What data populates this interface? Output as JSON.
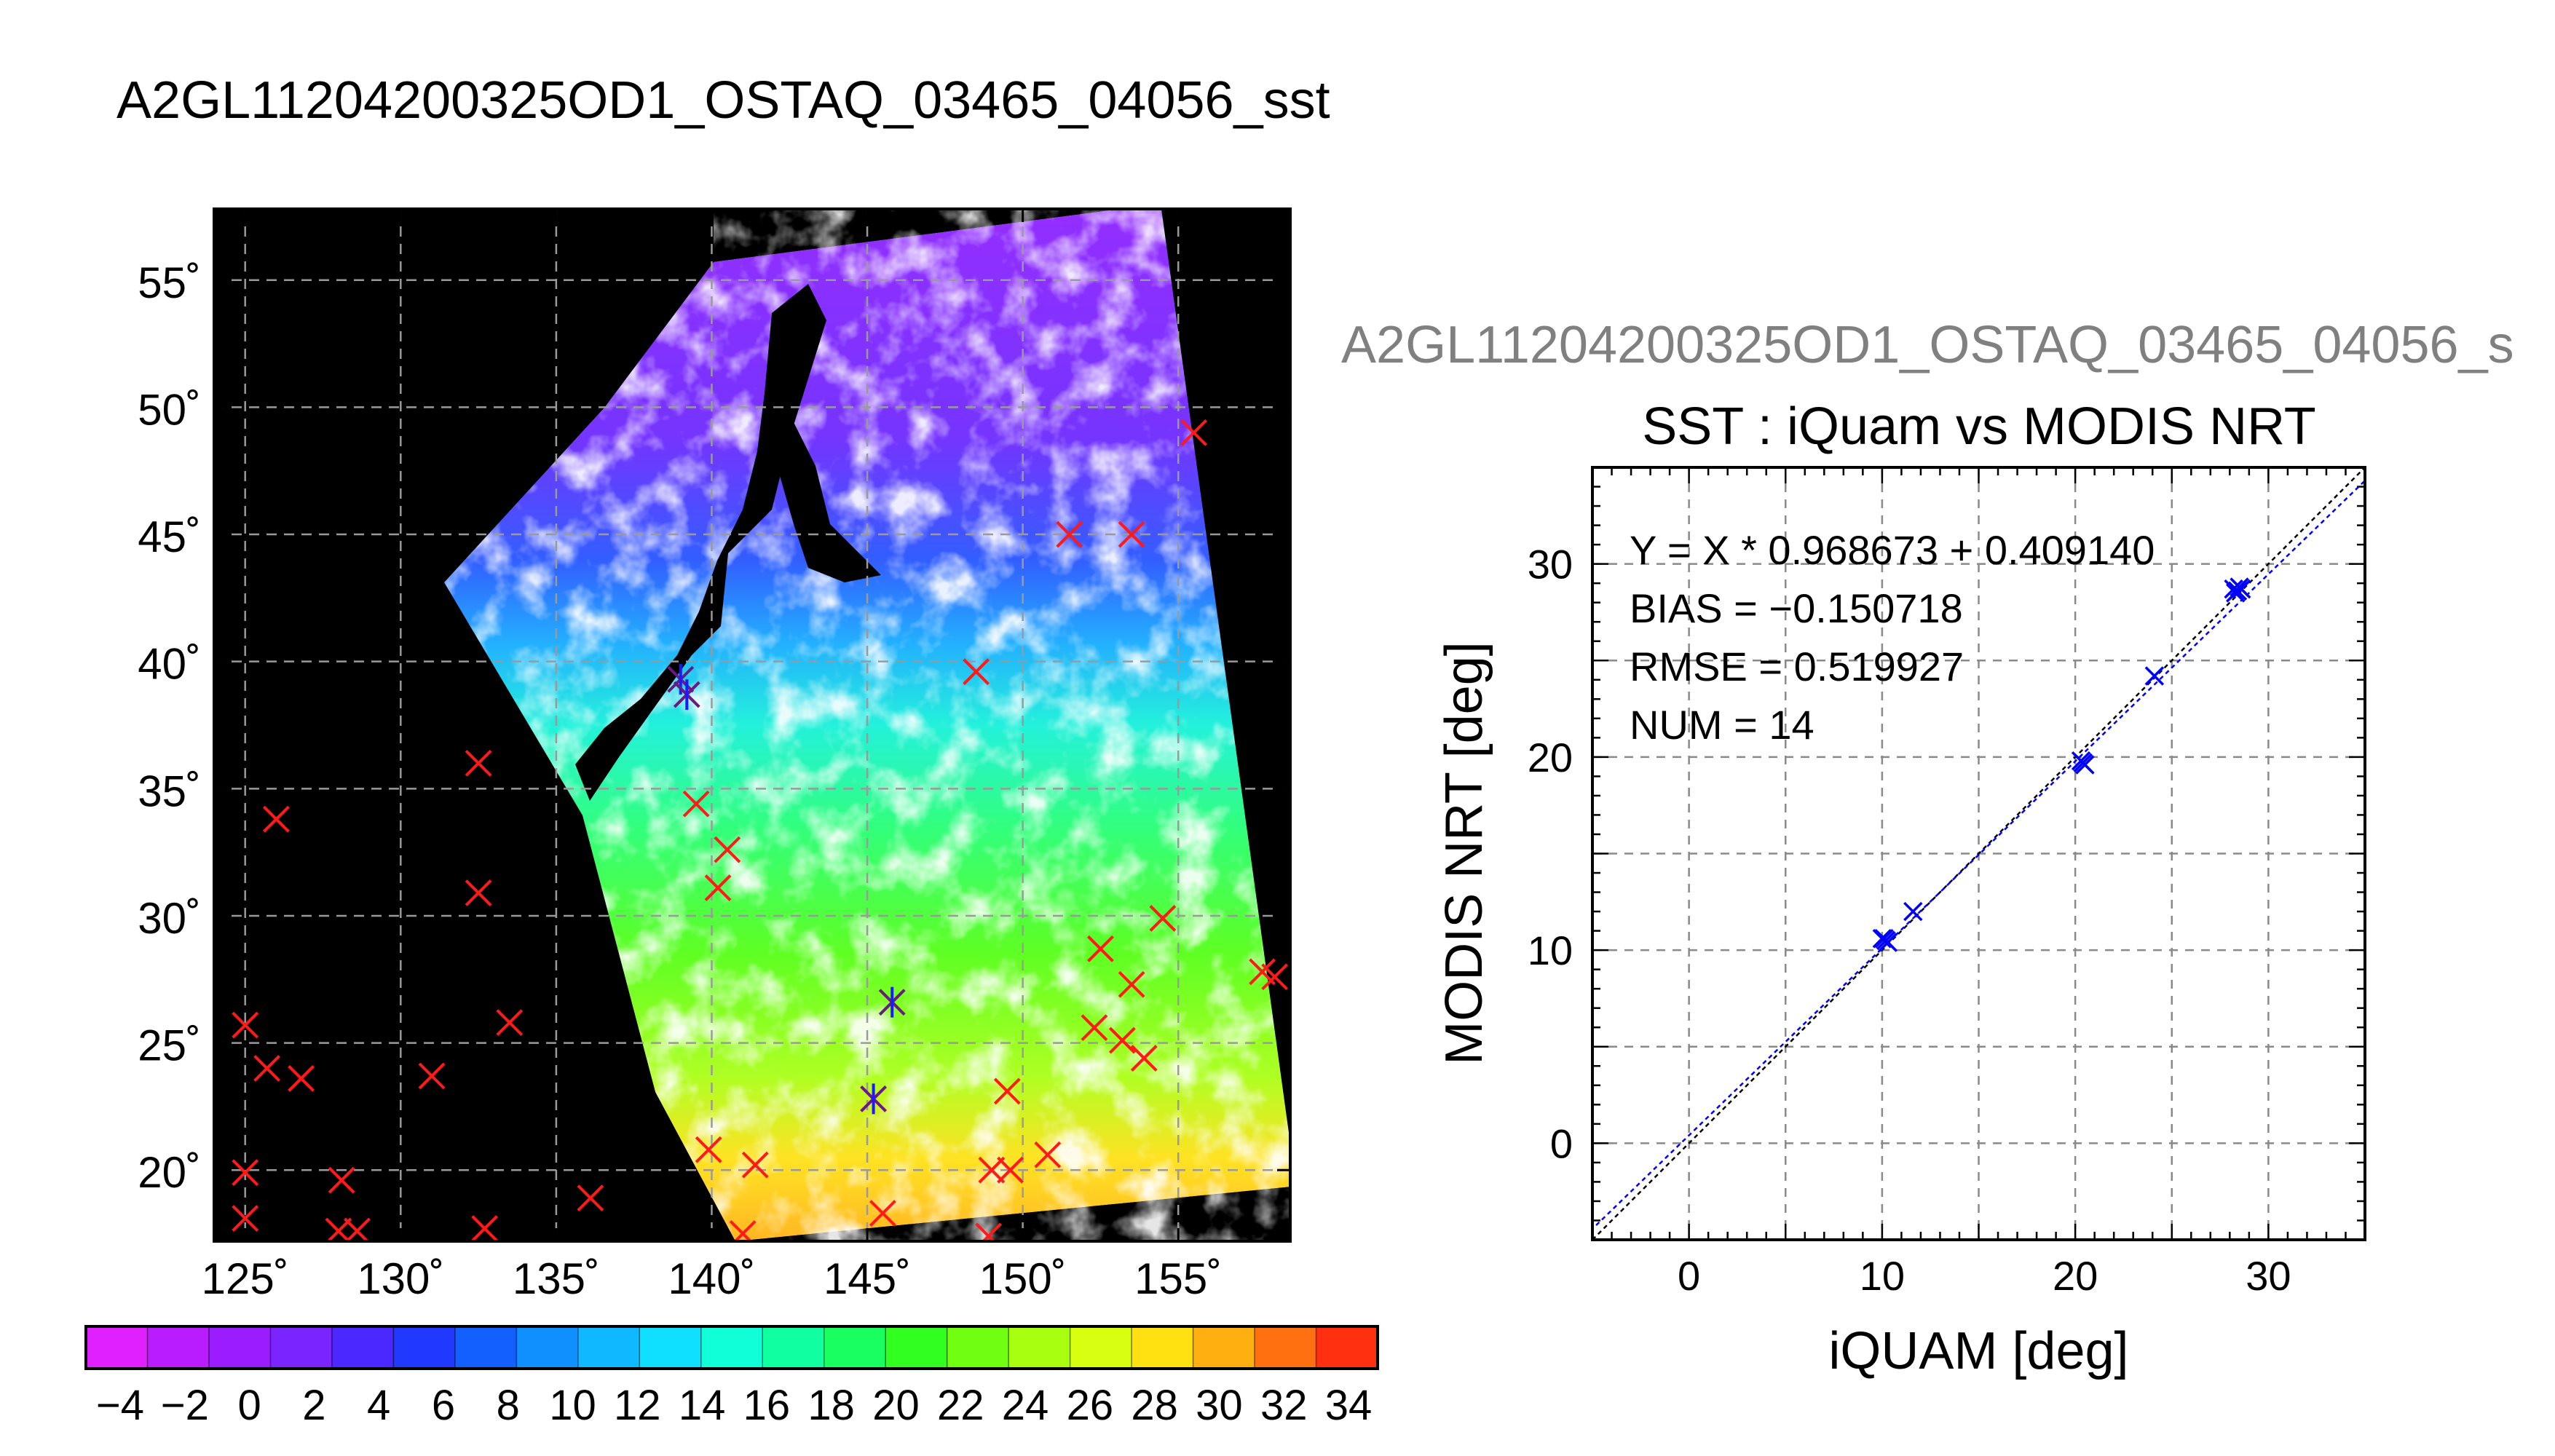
{
  "main_title": "A2GL11204200325OD1_OSTAQ_03465_04056_sst",
  "map": {
    "lat_labels": [
      "55˚",
      "50˚",
      "45˚",
      "40˚",
      "35˚",
      "30˚",
      "25˚",
      "20˚"
    ],
    "lat_values": [
      55,
      50,
      45,
      40,
      35,
      30,
      25,
      20
    ],
    "lon_labels": [
      "125˚",
      "130˚",
      "135˚",
      "140˚",
      "145˚",
      "150˚",
      "155˚"
    ],
    "lon_values": [
      125,
      130,
      135,
      140,
      145,
      150,
      155
    ],
    "lon_range": [
      124,
      158.6
    ],
    "lat_range": [
      17.2,
      57.8
    ],
    "background": "#000000",
    "no_data_color": "#ffffff",
    "marker_color": "#ff1a1a",
    "match_color": "#1a1aff",
    "red_markers": [
      [
        155.5,
        49
      ],
      [
        151.5,
        45
      ],
      [
        153.5,
        45
      ],
      [
        148.5,
        39.6
      ],
      [
        139.5,
        34.4
      ],
      [
        132.5,
        36
      ],
      [
        126,
        33.8
      ],
      [
        132.5,
        30.9
      ],
      [
        140.5,
        32.6
      ],
      [
        140.2,
        31.1
      ],
      [
        152.5,
        28.7
      ],
      [
        154.5,
        29.9
      ],
      [
        153.5,
        27.3
      ],
      [
        157.7,
        27.8
      ],
      [
        158.1,
        27.6
      ],
      [
        125,
        25.7
      ],
      [
        125.7,
        24
      ],
      [
        126.8,
        23.6
      ],
      [
        131,
        23.7
      ],
      [
        133.5,
        25.8
      ],
      [
        152.3,
        25.6
      ],
      [
        153.2,
        25.1
      ],
      [
        153.9,
        24.4
      ],
      [
        149.5,
        23.1
      ],
      [
        125,
        19.9
      ],
      [
        125,
        18.1
      ],
      [
        128.1,
        19.6
      ],
      [
        128,
        17.6
      ],
      [
        128.6,
        17.6
      ],
      [
        132.7,
        17.7
      ],
      [
        136.1,
        18.9
      ],
      [
        139.9,
        20.8
      ],
      [
        141.4,
        20.2
      ],
      [
        149,
        20
      ],
      [
        149.6,
        20
      ],
      [
        150.8,
        20.6
      ],
      [
        145.5,
        18.3
      ],
      [
        148.9,
        17.4
      ],
      [
        141,
        17.5
      ]
    ],
    "match_markers": [
      [
        139,
        39.3
      ],
      [
        139.2,
        38.7
      ],
      [
        145.8,
        26.6
      ],
      [
        145.2,
        22.8
      ]
    ]
  },
  "colorbar": {
    "labels": [
      "−4",
      "−2",
      "0",
      "2",
      "4",
      "6",
      "8",
      "10",
      "12",
      "14",
      "16",
      "18",
      "20",
      "22",
      "24",
      "26",
      "28",
      "30",
      "32",
      "34"
    ],
    "colors": [
      "#e020ff",
      "#b81cff",
      "#9a1cff",
      "#7a24ff",
      "#4a28ff",
      "#2038ff",
      "#1460ff",
      "#1090ff",
      "#10b8ff",
      "#10e0ff",
      "#10ffd8",
      "#10ffa0",
      "#18ff60",
      "#30ff20",
      "#70ff10",
      "#a8ff10",
      "#d8ff10",
      "#ffe010",
      "#ffb010",
      "#ff7010",
      "#ff3010"
    ]
  },
  "scatter_panel": {
    "title_overflow": "A2GL11204200325OD1_OSTAQ_03465_04056_s",
    "title_color": "#808080"
  },
  "chart_data": {
    "type": "scatter",
    "title": "SST : iQuam vs MODIS NRT",
    "xlabel": "iQUAM [deg]",
    "ylabel": "MODIS NRT [deg]",
    "xlim": [
      -5,
      35
    ],
    "ylim": [
      -5,
      35
    ],
    "xticks": [
      0,
      10,
      20,
      30
    ],
    "yticks": [
      0,
      10,
      20,
      30
    ],
    "xtick_labels": [
      "0",
      "10",
      "20",
      "30"
    ],
    "ytick_labels": [
      "0",
      "10",
      "20",
      "30"
    ],
    "grid": true,
    "stats": [
      "Y = X * 0.968673 + 0.409140",
      "BIAS = −0.150718",
      "RMSE = 0.519927",
      "NUM = 14"
    ],
    "series": [
      {
        "color": "#0000ff",
        "points": [
          [
            10.0,
            10.6
          ],
          [
            10.2,
            10.5
          ],
          [
            10.3,
            10.4
          ],
          [
            10.1,
            10.6
          ],
          [
            11.6,
            12.0
          ],
          [
            20.3,
            19.8
          ],
          [
            20.5,
            19.6
          ],
          [
            20.4,
            19.7
          ],
          [
            24.1,
            24.2
          ],
          [
            28.2,
            28.7
          ],
          [
            28.4,
            28.6
          ],
          [
            28.6,
            28.7
          ],
          [
            28.3,
            28.5
          ],
          [
            28.5,
            28.8
          ]
        ]
      }
    ],
    "fit_line": {
      "slope": 0.968673,
      "intercept": 0.40914,
      "color": "#0000ff"
    },
    "one_to_one_line": {
      "color": "#000000"
    }
  }
}
